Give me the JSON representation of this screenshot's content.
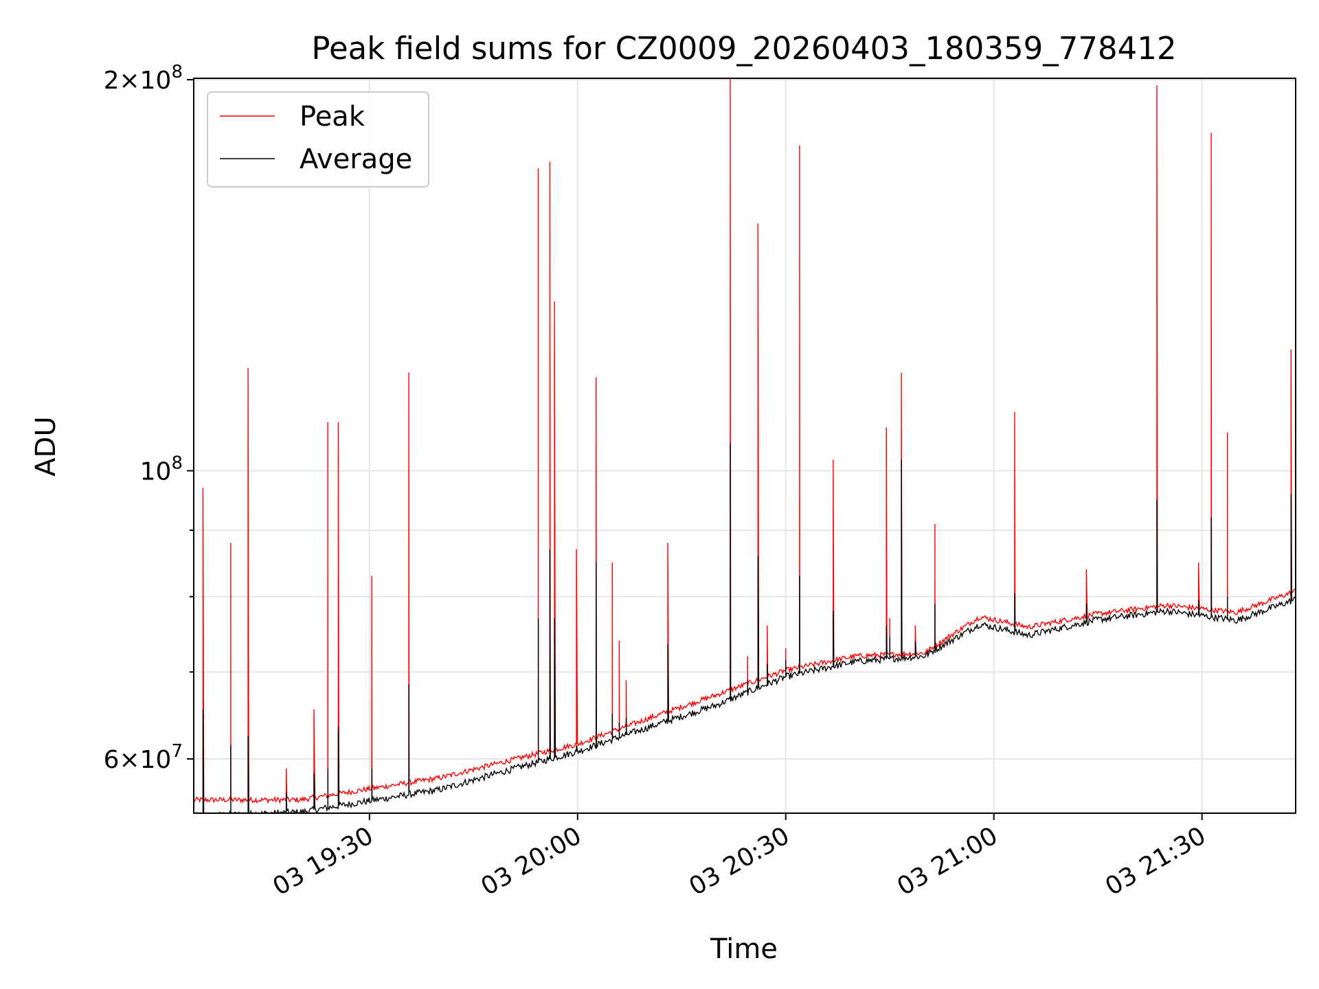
{
  "chart_data": {
    "type": "line",
    "title": "Peak field sums for CZ0009_20260403_180359_778412",
    "xlabel": "Time",
    "ylabel": "ADU",
    "yscale": "log",
    "ylim": [
      54500000,
      200500000
    ],
    "xlim": [
      "2026-04-03 19:04:40",
      "2026-04-03 21:43:30"
    ],
    "grid": true,
    "legend_position": "upper-left",
    "x_ticks": [
      "03 19:30",
      "03 20:00",
      "03 20:30",
      "03 21:00",
      "03 21:30"
    ],
    "y_ticks": [
      {
        "value": 60000000,
        "mantissa": "6",
        "exponent": "7"
      },
      {
        "value": 100000000,
        "mantissa": "",
        "exponent": "8"
      },
      {
        "value": 200000000,
        "mantissa": "2",
        "exponent": "8"
      }
    ],
    "y_tick_base": "10",
    "times_of_x_ticks": [
      "2026-04-03 19:30",
      "2026-04-03 20:00",
      "2026-04-03 20:30",
      "2026-04-03 21:00",
      "2026-04-03 21:30"
    ],
    "baseline": {
      "description_times": [
        "2026-04-03 19:04:40",
        "2026-04-03 19:20",
        "2026-04-03 19:40",
        "2026-04-03 20:00",
        "2026-04-03 20:20",
        "2026-04-03 20:30",
        "2026-04-03 20:40",
        "2026-04-03 20:50",
        "2026-04-03 20:58",
        "2026-04-03 21:05",
        "2026-04-03 21:15",
        "2026-04-03 21:25",
        "2026-04-03 21:35",
        "2026-04-03 21:43:30"
      ],
      "average": [
        54200000,
        54600000,
        56800000,
        60800000,
        66000000,
        69400000,
        71300000,
        72000000,
        76200000,
        74700000,
        76800000,
        78000000,
        76700000,
        79600000
      ],
      "peak": [
        55800000,
        55800000,
        58000000,
        61600000,
        67200000,
        70200000,
        72000000,
        72400000,
        77200000,
        75800000,
        77600000,
        78800000,
        77800000,
        80800000
      ]
    },
    "spikes": [
      {
        "t": "2026-04-03 19:06",
        "peak": 97000000,
        "average": 65500000
      },
      {
        "t": "2026-04-03 19:10",
        "peak": 88000000,
        "average": 61500000
      },
      {
        "t": "2026-04-03 19:12:30",
        "peak": 120000000,
        "average": 62500000
      },
      {
        "t": "2026-04-03 19:18",
        "peak": 59000000,
        "average": 56500000
      },
      {
        "t": "2026-04-03 19:22",
        "peak": 65500000,
        "average": 58500000
      },
      {
        "t": "2026-04-03 19:24",
        "peak": 109000000,
        "average": 59000000
      },
      {
        "t": "2026-04-03 19:25:30",
        "peak": 109000000,
        "average": 63500000
      },
      {
        "t": "2026-04-03 19:30:20",
        "peak": 83000000,
        "average": 59000000
      },
      {
        "t": "2026-04-03 19:35:40",
        "peak": 119000000,
        "average": 68500000
      },
      {
        "t": "2026-04-03 19:54:20",
        "peak": 171000000,
        "average": 77000000
      },
      {
        "t": "2026-04-03 19:56",
        "peak": 173000000,
        "average": 87000000
      },
      {
        "t": "2026-04-03 19:56:40",
        "peak": 135000000,
        "average": 77000000
      },
      {
        "t": "2026-04-03 19:59:50",
        "peak": 87000000,
        "average": 61500000
      },
      {
        "t": "2026-04-03 20:02:40",
        "peak": 118000000,
        "average": 85000000
      },
      {
        "t": "2026-04-03 20:05",
        "peak": 85000000,
        "average": 65000000
      },
      {
        "t": "2026-04-03 20:06",
        "peak": 74000000,
        "average": 64000000
      },
      {
        "t": "2026-04-03 20:07",
        "peak": 69000000,
        "average": 64500000
      },
      {
        "t": "2026-04-03 20:13",
        "peak": 88000000,
        "average": 73500000
      },
      {
        "t": "2026-04-03 20:22",
        "peak": 201000000,
        "average": 105000000
      },
      {
        "t": "2026-04-03 20:24:30",
        "peak": 72000000,
        "average": 69000000
      },
      {
        "t": "2026-04-03 20:26",
        "peak": 155000000,
        "average": 86000000
      },
      {
        "t": "2026-04-03 20:27:20",
        "peak": 76000000,
        "average": 71000000
      },
      {
        "t": "2026-04-03 20:30",
        "peak": 73000000,
        "average": 71500000
      },
      {
        "t": "2026-04-03 20:32",
        "peak": 178000000,
        "average": 83000000
      },
      {
        "t": "2026-04-03 20:36:50",
        "peak": 102000000,
        "average": 78000000
      },
      {
        "t": "2026-04-03 20:44:30",
        "peak": 108000000,
        "average": 76000000
      },
      {
        "t": "2026-04-03 20:45",
        "peak": 77000000,
        "average": 74500000
      },
      {
        "t": "2026-04-03 20:46:40",
        "peak": 119000000,
        "average": 102000000
      },
      {
        "t": "2026-04-03 20:48:40",
        "peak": 76000000,
        "average": 74000000
      },
      {
        "t": "2026-04-03 20:51:30",
        "peak": 91000000,
        "average": 79000000
      },
      {
        "t": "2026-04-03 21:03",
        "peak": 111000000,
        "average": 80500000
      },
      {
        "t": "2026-04-03 21:13:20",
        "peak": 84000000,
        "average": 79000000
      },
      {
        "t": "2026-04-03 21:23:30",
        "peak": 198000000,
        "average": 95000000
      },
      {
        "t": "2026-04-03 21:29:30",
        "peak": 85000000,
        "average": 79500000
      },
      {
        "t": "2026-04-03 21:31:20",
        "peak": 182000000,
        "average": 92000000
      },
      {
        "t": "2026-04-03 21:33:40",
        "peak": 107000000,
        "average": 80000000
      },
      {
        "t": "2026-04-03 21:42:50",
        "peak": 124000000,
        "average": 96000000
      }
    ],
    "series": [
      {
        "name": "Peak",
        "color": "#ff0000"
      },
      {
        "name": "Average",
        "color": "#000000"
      }
    ]
  }
}
